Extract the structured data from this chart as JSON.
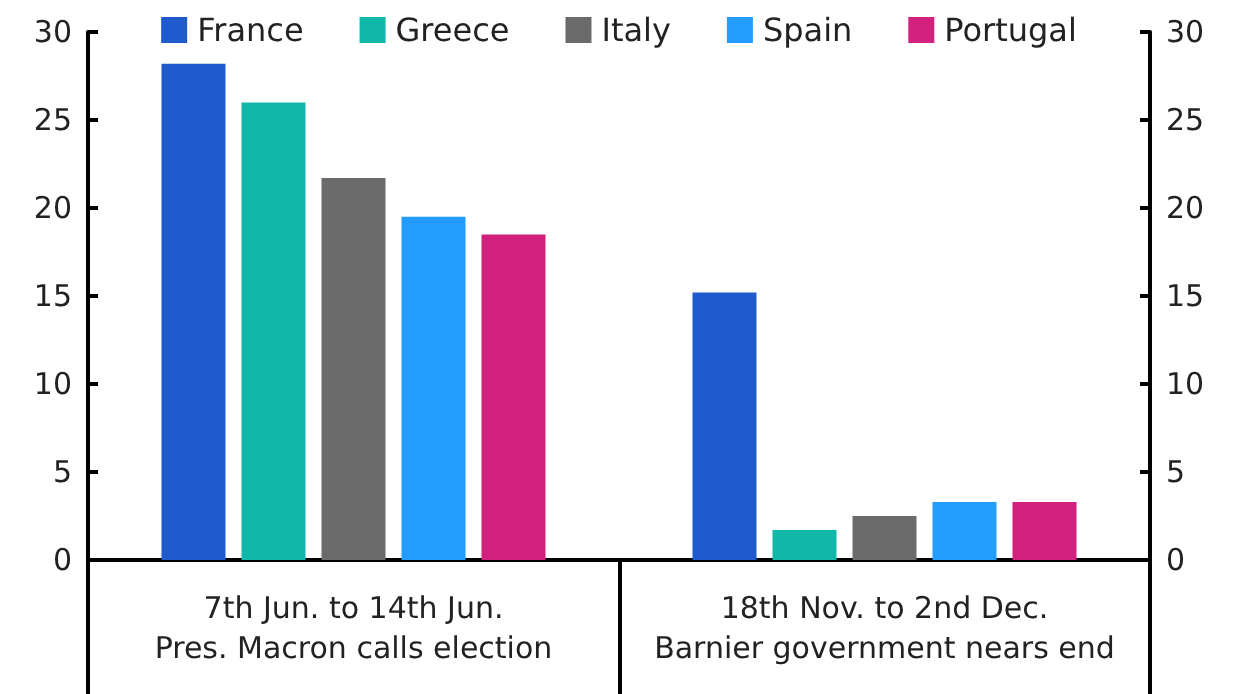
{
  "chart_data": {
    "type": "bar",
    "categories": [
      "7th Jun. to 14th Jun.\nPres. Macron calls election",
      "18th Nov. to 2nd Dec.\nBarnier government nears end"
    ],
    "series": [
      {
        "name": "France",
        "color": "#1f5bcc",
        "values": [
          28.2,
          15.2
        ]
      },
      {
        "name": "Greece",
        "color": "#0fb8a8",
        "values": [
          26.0,
          1.7
        ]
      },
      {
        "name": "Italy",
        "color": "#6b6b6b",
        "values": [
          21.7,
          2.5
        ]
      },
      {
        "name": "Spain",
        "color": "#229cff",
        "values": [
          19.5,
          3.3
        ]
      },
      {
        "name": "Portugal",
        "color": "#d2207e",
        "values": [
          18.5,
          3.3
        ]
      }
    ],
    "ylim": [
      0,
      30
    ],
    "yticks": [
      0,
      5,
      10,
      15,
      20,
      25,
      30
    ],
    "y2lim": [
      0,
      30
    ],
    "y2ticks": [
      0,
      5,
      10,
      15,
      20,
      25,
      30
    ],
    "grid": false,
    "legend": "top"
  }
}
